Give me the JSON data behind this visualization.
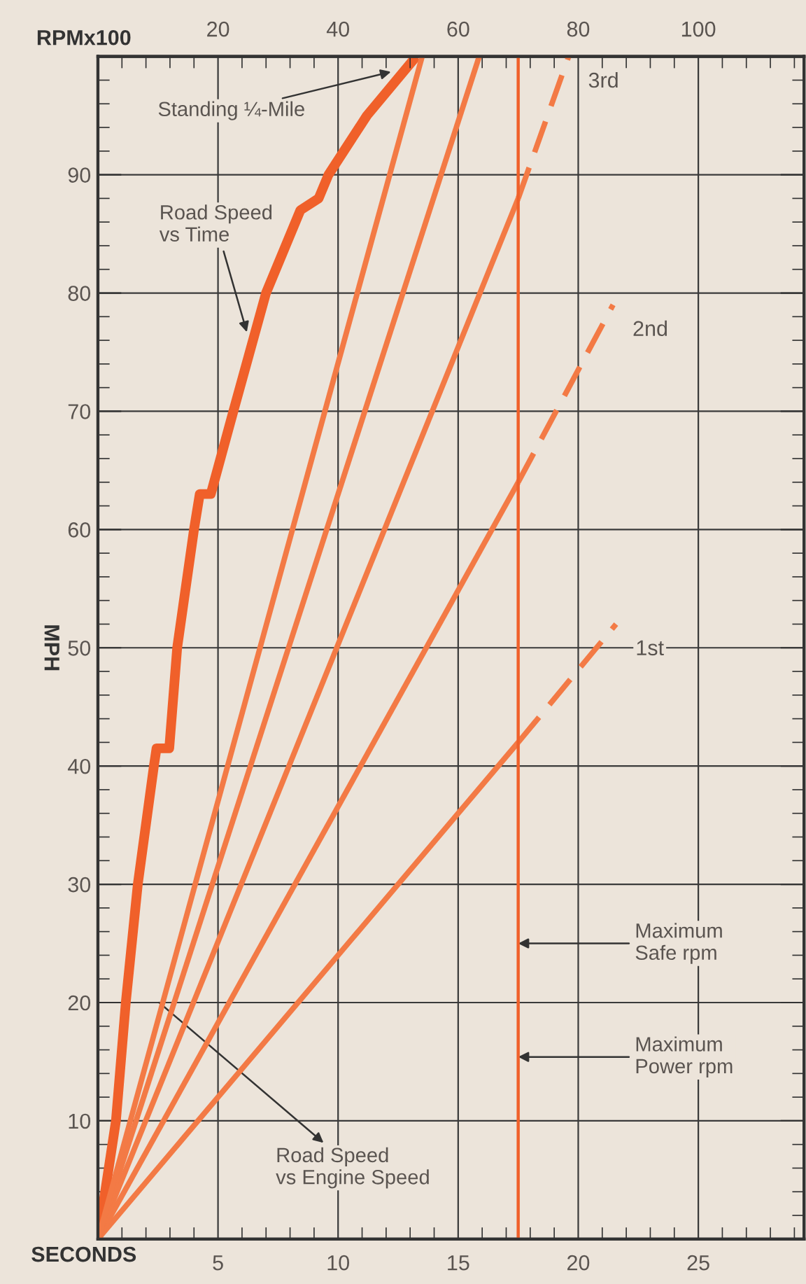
{
  "chart_data": {
    "type": "line",
    "xlabel": "SECONDS",
    "x2label": "RPMx100",
    "ylabel": "MPH",
    "xlim": [
      0,
      29.4
    ],
    "xticks": [
      5,
      10,
      15,
      20,
      25
    ],
    "x2lim": [
      0,
      117.6
    ],
    "x2ticks": [
      20,
      40,
      60,
      80,
      100
    ],
    "ylim": [
      0,
      100
    ],
    "yticks": [
      10,
      20,
      30,
      40,
      50,
      60,
      70,
      80,
      90
    ],
    "grid": true,
    "legend": false,
    "marker": "none",
    "series": [
      {
        "color": "#f0602a",
        "x": [
          0,
          0.75,
          1.16,
          1.66,
          2.33,
          2.44,
          2.97,
          3.3,
          4.0,
          4.24,
          4.7,
          5.64,
          7.0,
          8.43,
          9.19,
          9.6,
          11.2,
          13.25
        ],
        "values": [
          0,
          10,
          20,
          30,
          40,
          41.5,
          41.5,
          50,
          60,
          63,
          63,
          70,
          80,
          87,
          88,
          90,
          95,
          100
        ],
        "line_style": "solid"
      },
      {
        "axis": "x2",
        "color": "#f37a45",
        "x": [
          0,
          70
        ],
        "values": [
          0,
          42
        ],
        "line_style": "solid"
      },
      {
        "axis": "x2",
        "name": "1st",
        "color": "#f37a45",
        "x": [
          70,
          86.3
        ],
        "values": [
          42,
          52
        ],
        "line_style": "dashed"
      },
      {
        "axis": "x2",
        "color": "#f37a45",
        "x": [
          0,
          70
        ],
        "values": [
          0,
          64
        ],
        "line_style": "solid"
      },
      {
        "axis": "x2",
        "name": "2nd",
        "color": "#f37a45",
        "x": [
          70,
          85.8
        ],
        "values": [
          64,
          79
        ],
        "line_style": "dashed"
      },
      {
        "axis": "x2",
        "color": "#f37a45",
        "x": [
          0,
          70
        ],
        "values": [
          0,
          88
        ],
        "line_style": "solid"
      },
      {
        "axis": "x2",
        "name": "3rd",
        "color": "#f37a45",
        "x": [
          70,
          78.4
        ],
        "values": [
          88,
          100
        ],
        "line_style": "dashed"
      },
      {
        "axis": "x2",
        "color": "#f37a45",
        "x": [
          0,
          63.5
        ],
        "values": [
          0,
          100
        ],
        "line_style": "solid"
      },
      {
        "axis": "x2",
        "color": "#f37a45",
        "x": [
          0,
          54
        ],
        "values": [
          0,
          100
        ],
        "line_style": "solid"
      }
    ],
    "ref_lines": [
      {
        "axis": "x2",
        "value": 70,
        "color": "#f0602a"
      }
    ],
    "annotations": [
      {
        "text": "Standing ¼-Mile",
        "x": 12.2,
        "y": 98.7
      },
      {
        "text": "Road Speed\nvs Time",
        "x": 6.2,
        "y": 76.7
      },
      {
        "text": "Road Speed\nvs Engine Speed",
        "x": 2.55,
        "y": 20
      },
      {
        "text": "Maximum\nSafe rpm",
        "x": 17.5,
        "y": 25
      },
      {
        "text": "Maximum\nPower rpm",
        "x": 17.5,
        "y": 15.4
      }
    ]
  }
}
